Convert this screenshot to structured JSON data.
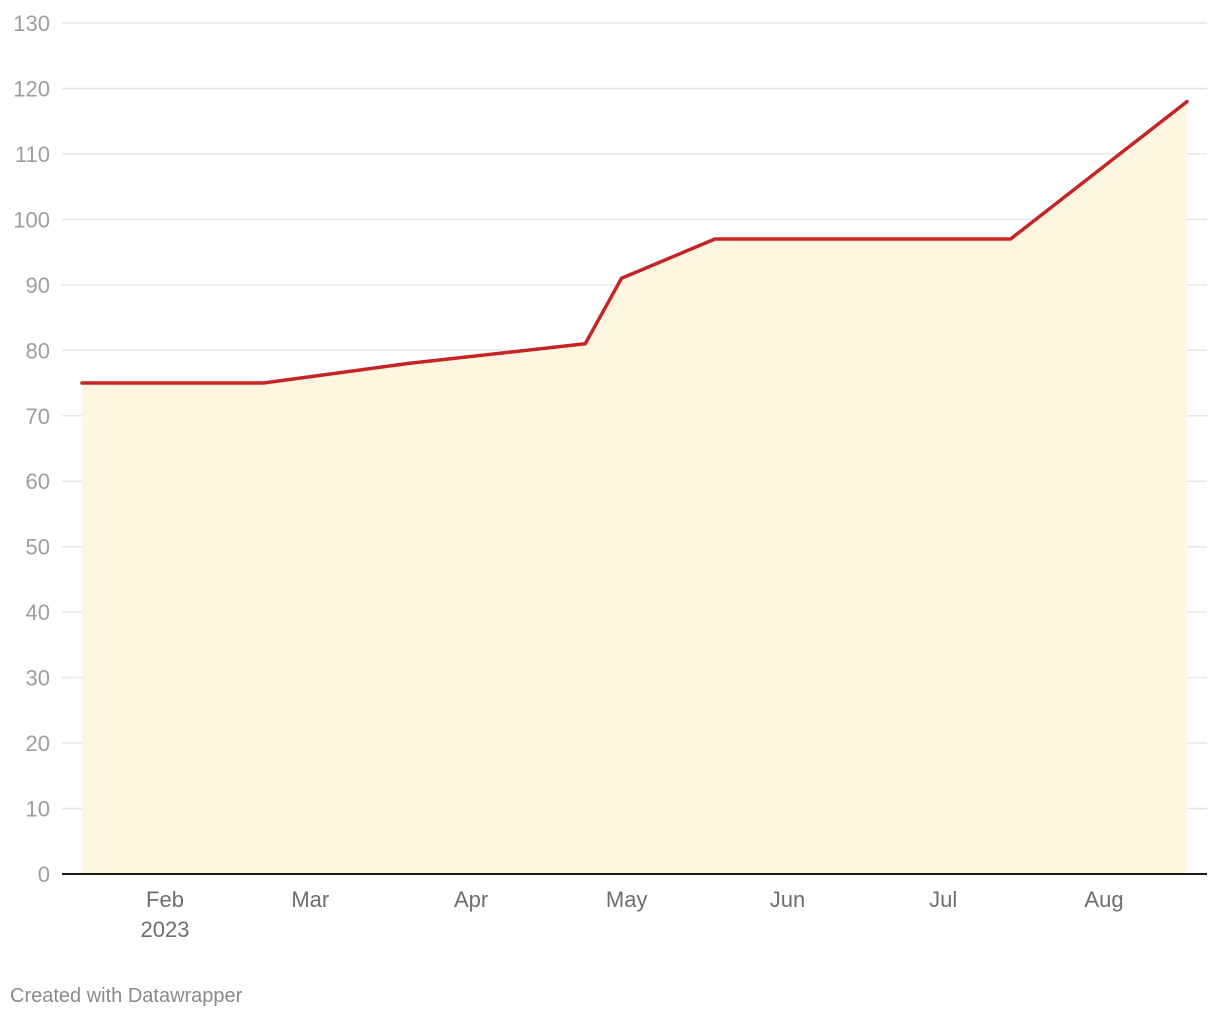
{
  "chart_data": {
    "type": "area",
    "x": [
      "2023-01-16",
      "2023-02-20",
      "2023-03-20",
      "2023-04-23",
      "2023-04-30",
      "2023-05-18",
      "2023-07-14",
      "2023-08-17"
    ],
    "series": [
      {
        "values": [
          75,
          75,
          78,
          81,
          91,
          97,
          97,
          118
        ]
      }
    ],
    "xlim": [
      "2023-01-16",
      "2023-08-17"
    ],
    "ylim": [
      0,
      130
    ],
    "y_ticks": [
      0,
      10,
      20,
      30,
      40,
      50,
      60,
      70,
      80,
      90,
      100,
      110,
      120,
      130
    ],
    "x_ticks": [
      {
        "date": "2023-02-01",
        "label": "Feb",
        "sublabel": "2023"
      },
      {
        "date": "2023-03-01",
        "label": "Mar"
      },
      {
        "date": "2023-04-01",
        "label": "Apr"
      },
      {
        "date": "2023-05-01",
        "label": "May"
      },
      {
        "date": "2023-06-01",
        "label": "Jun"
      },
      {
        "date": "2023-07-01",
        "label": "Jul"
      },
      {
        "date": "2023-08-01",
        "label": "Aug"
      }
    ],
    "grid": true,
    "colors": {
      "line": "#c62424",
      "fill": "#fff6e1",
      "grid": "#e6e6e6",
      "axis": "#1a1a1a"
    }
  },
  "footer": {
    "credit": "Created with Datawrapper"
  }
}
